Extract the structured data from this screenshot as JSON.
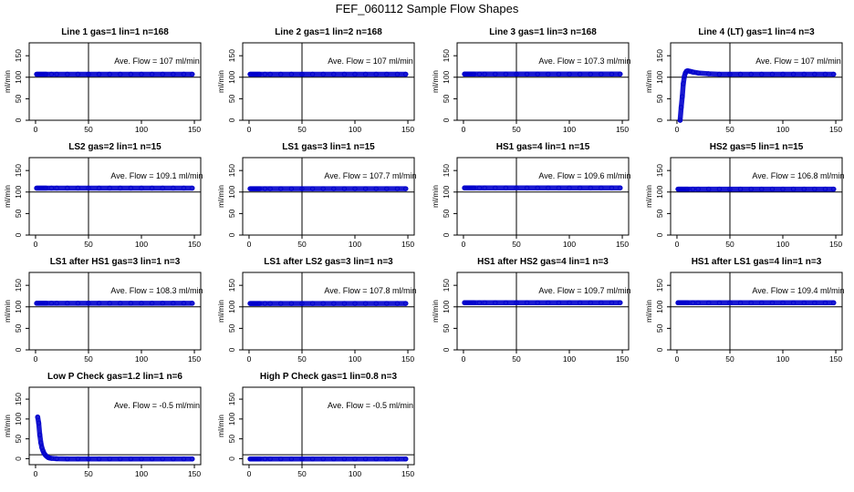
{
  "figure": {
    "title": "FEF_060112  Sample Flow Shapes"
  },
  "colors": {
    "points": "#0000cc",
    "axes": "#000000"
  },
  "chart_data": [
    {
      "type": "scatter",
      "title": "Line 1 gas=1 lin=1 n=168",
      "ylabel": "ml/min",
      "annotation": "Ave. Flow =  107  ml/min",
      "xlim": [
        0,
        150
      ],
      "ylim": [
        0,
        180
      ],
      "xticks": [
        0,
        50,
        100,
        150
      ],
      "yticks": [
        0,
        50,
        100,
        150
      ],
      "x": [
        1,
        2,
        3,
        4,
        5,
        6,
        7,
        8,
        9,
        10,
        15,
        20,
        30,
        40,
        50,
        60,
        70,
        80,
        90,
        100,
        110,
        120,
        130,
        140,
        148
      ],
      "y": [
        107,
        107,
        107,
        107,
        107,
        107,
        107,
        107,
        107,
        107,
        107,
        107,
        107,
        107,
        107,
        107,
        107,
        107,
        107,
        107,
        107,
        107,
        107,
        107,
        107
      ],
      "hline": 100,
      "vline": 50
    },
    {
      "type": "scatter",
      "title": "Line 2 gas=1 lin=2 n=168",
      "ylabel": "ml/min",
      "annotation": "Ave. Flow =  107  ml/min",
      "xlim": [
        0,
        150
      ],
      "ylim": [
        0,
        180
      ],
      "xticks": [
        0,
        50,
        100,
        150
      ],
      "yticks": [
        0,
        50,
        100,
        150
      ],
      "x": [
        1,
        2,
        3,
        4,
        5,
        6,
        7,
        8,
        9,
        10,
        15,
        20,
        30,
        40,
        50,
        60,
        70,
        80,
        90,
        100,
        110,
        120,
        130,
        140,
        148
      ],
      "y": [
        107,
        107,
        107,
        107,
        107,
        107,
        107,
        107,
        107,
        107,
        107,
        107,
        107,
        107,
        107,
        107,
        107,
        107,
        107,
        107,
        107,
        107,
        107,
        107,
        107
      ],
      "hline": 100,
      "vline": 50
    },
    {
      "type": "scatter",
      "title": "Line 3 gas=1 lin=3 n=168",
      "ylabel": "ml/min",
      "annotation": "Ave. Flow =  107.3  ml/min",
      "xlim": [
        0,
        150
      ],
      "ylim": [
        0,
        180
      ],
      "xticks": [
        0,
        50,
        100,
        150
      ],
      "yticks": [
        0,
        50,
        100,
        150
      ],
      "x": [
        1,
        2,
        3,
        4,
        5,
        6,
        7,
        8,
        9,
        10,
        15,
        20,
        30,
        40,
        50,
        60,
        70,
        80,
        90,
        100,
        110,
        120,
        130,
        140,
        148
      ],
      "y": [
        107.3,
        107.3,
        107.3,
        107.3,
        107.3,
        107.3,
        107.3,
        107.3,
        107.3,
        107.3,
        107.3,
        107.3,
        107.3,
        107.3,
        107.3,
        107.3,
        107.3,
        107.3,
        107.3,
        107.3,
        107.3,
        107.3,
        107.3,
        107.3,
        107.3
      ],
      "hline": 100,
      "vline": 50
    },
    {
      "type": "scatter",
      "title": "Line 4 (LT) gas=1 lin=4 n=3",
      "ylabel": "ml/min",
      "annotation": "Ave. Flow =  107  ml/min",
      "xlim": [
        0,
        150
      ],
      "ylim": [
        0,
        180
      ],
      "xticks": [
        0,
        50,
        100,
        150
      ],
      "yticks": [
        0,
        50,
        100,
        150
      ],
      "x": [
        3,
        4,
        5,
        6,
        7,
        8,
        9,
        10,
        12,
        15,
        20,
        30,
        40,
        50,
        60,
        70,
        80,
        90,
        100,
        110,
        120,
        130,
        140,
        148
      ],
      "y": [
        0,
        30,
        55,
        85,
        102,
        110,
        114,
        115,
        114,
        112,
        110,
        108,
        107,
        107,
        107,
        107,
        107,
        107,
        107,
        107,
        107,
        107,
        107,
        107
      ],
      "hline": 100,
      "vline": 50
    },
    {
      "type": "scatter",
      "title": "LS2 gas=2 lin=1 n=15",
      "ylabel": "ml/min",
      "annotation": "Ave. Flow =  109.1  ml/min",
      "xlim": [
        0,
        150
      ],
      "ylim": [
        0,
        180
      ],
      "xticks": [
        0,
        50,
        100,
        150
      ],
      "yticks": [
        0,
        50,
        100,
        150
      ],
      "x": [
        1,
        2,
        3,
        4,
        5,
        6,
        7,
        8,
        9,
        10,
        15,
        20,
        30,
        40,
        50,
        60,
        70,
        80,
        90,
        100,
        110,
        120,
        130,
        140,
        148
      ],
      "y": [
        109.1,
        109.1,
        109.1,
        109.1,
        109.1,
        109.1,
        109.1,
        109.1,
        109.1,
        109.1,
        109.1,
        109.1,
        109.1,
        109.1,
        109.1,
        109.1,
        109.1,
        109.1,
        109.1,
        109.1,
        109.1,
        109.1,
        109.1,
        109.1,
        109.1
      ],
      "hline": 100,
      "vline": 50
    },
    {
      "type": "scatter",
      "title": "LS1 gas=3 lin=1 n=15",
      "ylabel": "ml/min",
      "annotation": "Ave. Flow =  107.7  ml/min",
      "xlim": [
        0,
        150
      ],
      "ylim": [
        0,
        180
      ],
      "xticks": [
        0,
        50,
        100,
        150
      ],
      "yticks": [
        0,
        50,
        100,
        150
      ],
      "x": [
        1,
        2,
        3,
        4,
        5,
        6,
        7,
        8,
        9,
        10,
        15,
        20,
        30,
        40,
        50,
        60,
        70,
        80,
        90,
        100,
        110,
        120,
        130,
        140,
        148
      ],
      "y": [
        107.7,
        107.7,
        107.7,
        107.7,
        107.7,
        107.7,
        107.7,
        107.7,
        107.7,
        107.7,
        107.7,
        107.7,
        107.7,
        107.7,
        107.7,
        107.7,
        107.7,
        107.7,
        107.7,
        107.7,
        107.7,
        107.7,
        107.7,
        107.7,
        107.7
      ],
      "hline": 100,
      "vline": 50
    },
    {
      "type": "scatter",
      "title": "HS1 gas=4 lin=1 n=15",
      "ylabel": "ml/min",
      "annotation": "Ave. Flow =  109.6  ml/min",
      "xlim": [
        0,
        150
      ],
      "ylim": [
        0,
        180
      ],
      "xticks": [
        0,
        50,
        100,
        150
      ],
      "yticks": [
        0,
        50,
        100,
        150
      ],
      "x": [
        1,
        2,
        3,
        4,
        5,
        6,
        7,
        8,
        9,
        10,
        15,
        20,
        30,
        40,
        50,
        60,
        70,
        80,
        90,
        100,
        110,
        120,
        130,
        140,
        148
      ],
      "y": [
        109.6,
        109.6,
        109.6,
        109.6,
        109.6,
        109.6,
        109.6,
        109.6,
        109.6,
        109.6,
        109.6,
        109.6,
        109.6,
        109.6,
        109.6,
        109.6,
        109.6,
        109.6,
        109.6,
        109.6,
        109.6,
        109.6,
        109.6,
        109.6,
        109.6
      ],
      "hline": 100,
      "vline": 50
    },
    {
      "type": "scatter",
      "title": "HS2 gas=5 lin=1 n=15",
      "ylabel": "ml/min",
      "annotation": "Ave. Flow =  106.8  ml/min",
      "xlim": [
        0,
        150
      ],
      "ylim": [
        0,
        180
      ],
      "xticks": [
        0,
        50,
        100,
        150
      ],
      "yticks": [
        0,
        50,
        100,
        150
      ],
      "x": [
        1,
        2,
        3,
        4,
        5,
        6,
        7,
        8,
        9,
        10,
        15,
        20,
        30,
        40,
        50,
        60,
        70,
        80,
        90,
        100,
        110,
        120,
        130,
        140,
        148
      ],
      "y": [
        106.8,
        106.8,
        106.8,
        106.8,
        106.8,
        106.8,
        106.8,
        106.8,
        106.8,
        106.8,
        106.8,
        106.8,
        106.8,
        106.8,
        106.8,
        106.8,
        106.8,
        106.8,
        106.8,
        106.8,
        106.8,
        106.8,
        106.8,
        106.8,
        106.8
      ],
      "hline": 100,
      "vline": 50
    },
    {
      "type": "scatter",
      "title": "LS1 after HS1 gas=3 lin=1 n=3",
      "ylabel": "ml/min",
      "annotation": "Ave. Flow =  108.3  ml/min",
      "xlim": [
        0,
        150
      ],
      "ylim": [
        0,
        180
      ],
      "xticks": [
        0,
        50,
        100,
        150
      ],
      "yticks": [
        0,
        50,
        100,
        150
      ],
      "x": [
        1,
        2,
        3,
        4,
        5,
        6,
        7,
        8,
        9,
        10,
        15,
        20,
        30,
        40,
        50,
        60,
        70,
        80,
        90,
        100,
        110,
        120,
        130,
        140,
        148
      ],
      "y": [
        108.3,
        108.3,
        108.3,
        108.3,
        108.3,
        108.3,
        108.3,
        108.3,
        108.3,
        108.3,
        108.3,
        108.3,
        108.3,
        108.3,
        108.3,
        108.3,
        108.3,
        108.3,
        108.3,
        108.3,
        108.3,
        108.3,
        108.3,
        108.3,
        108.3
      ],
      "hline": 100,
      "vline": 50
    },
    {
      "type": "scatter",
      "title": "LS1 after LS2 gas=3 lin=1 n=3",
      "ylabel": "ml/min",
      "annotation": "Ave. Flow =  107.8  ml/min",
      "xlim": [
        0,
        150
      ],
      "ylim": [
        0,
        180
      ],
      "xticks": [
        0,
        50,
        100,
        150
      ],
      "yticks": [
        0,
        50,
        100,
        150
      ],
      "x": [
        1,
        2,
        3,
        4,
        5,
        6,
        7,
        8,
        9,
        10,
        15,
        20,
        30,
        40,
        50,
        60,
        70,
        80,
        90,
        100,
        110,
        120,
        130,
        140,
        148
      ],
      "y": [
        107.8,
        107.8,
        107.8,
        107.8,
        107.8,
        107.8,
        107.8,
        107.8,
        107.8,
        107.8,
        107.8,
        107.8,
        107.8,
        107.8,
        107.8,
        107.8,
        107.8,
        107.8,
        107.8,
        107.8,
        107.8,
        107.8,
        107.8,
        107.8,
        107.8
      ],
      "hline": 100,
      "vline": 50
    },
    {
      "type": "scatter",
      "title": "HS1 after HS2 gas=4 lin=1 n=3",
      "ylabel": "ml/min",
      "annotation": "Ave. Flow =  109.7  ml/min",
      "xlim": [
        0,
        150
      ],
      "ylim": [
        0,
        180
      ],
      "xticks": [
        0,
        50,
        100,
        150
      ],
      "yticks": [
        0,
        50,
        100,
        150
      ],
      "x": [
        1,
        2,
        3,
        4,
        5,
        6,
        7,
        8,
        9,
        10,
        15,
        20,
        30,
        40,
        50,
        60,
        70,
        80,
        90,
        100,
        110,
        120,
        130,
        140,
        148
      ],
      "y": [
        109.7,
        109.7,
        109.7,
        109.7,
        109.7,
        109.7,
        109.7,
        109.7,
        109.7,
        109.7,
        109.7,
        109.7,
        109.7,
        109.7,
        109.7,
        109.7,
        109.7,
        109.7,
        109.7,
        109.7,
        109.7,
        109.7,
        109.7,
        109.7,
        109.7
      ],
      "hline": 100,
      "vline": 50
    },
    {
      "type": "scatter",
      "title": "HS1 after LS1 gas=4 lin=1 n=3",
      "ylabel": "ml/min",
      "annotation": "Ave. Flow =  109.4  ml/min",
      "xlim": [
        0,
        150
      ],
      "ylim": [
        0,
        180
      ],
      "xticks": [
        0,
        50,
        100,
        150
      ],
      "yticks": [
        0,
        50,
        100,
        150
      ],
      "x": [
        1,
        2,
        3,
        4,
        5,
        6,
        7,
        8,
        9,
        10,
        15,
        20,
        30,
        40,
        50,
        60,
        70,
        80,
        90,
        100,
        110,
        120,
        130,
        140,
        148
      ],
      "y": [
        109.4,
        109.4,
        109.4,
        109.4,
        109.4,
        109.4,
        109.4,
        109.4,
        109.4,
        109.4,
        109.4,
        109.4,
        109.4,
        109.4,
        109.4,
        109.4,
        109.4,
        109.4,
        109.4,
        109.4,
        109.4,
        109.4,
        109.4,
        109.4,
        109.4
      ],
      "hline": 100,
      "vline": 50
    },
    {
      "type": "scatter",
      "title": "Low P Check gas=1.2 lin=1 n=6",
      "ylabel": "ml/min",
      "annotation": "Ave. Flow =  -0.5  ml/min",
      "xlim": [
        0,
        150
      ],
      "ylim": [
        -15,
        180
      ],
      "xticks": [
        0,
        50,
        100,
        150
      ],
      "yticks": [
        0,
        50,
        100,
        150
      ],
      "x": [
        2,
        3,
        4,
        5,
        6,
        7,
        8,
        9,
        10,
        11,
        12,
        13,
        15,
        20,
        30,
        40,
        50,
        60,
        70,
        80,
        90,
        100,
        110,
        120,
        130,
        140,
        148
      ],
      "y": [
        105,
        90,
        60,
        40,
        28,
        20,
        14,
        10,
        7,
        5,
        3,
        2,
        1,
        0,
        -0.5,
        -0.5,
        -0.5,
        -0.5,
        -0.5,
        -0.5,
        -0.5,
        -0.5,
        -0.5,
        -0.5,
        -0.5,
        -0.5,
        -0.5
      ],
      "hline": 10,
      "vline": 50
    },
    {
      "type": "scatter",
      "title": "High P Check gas=1 lin=0.8 n=3",
      "ylabel": "ml/min",
      "annotation": "Ave. Flow =  -0.5  ml/min",
      "xlim": [
        0,
        150
      ],
      "ylim": [
        -15,
        180
      ],
      "xticks": [
        0,
        50,
        100,
        150
      ],
      "yticks": [
        0,
        50,
        100,
        150
      ],
      "x": [
        1,
        2,
        3,
        4,
        5,
        6,
        7,
        8,
        9,
        10,
        15,
        20,
        30,
        40,
        50,
        60,
        70,
        80,
        90,
        100,
        110,
        120,
        130,
        140,
        148
      ],
      "y": [
        -0.5,
        -0.5,
        -0.5,
        -0.5,
        -0.5,
        -0.5,
        -0.5,
        -0.5,
        -0.5,
        -0.5,
        -0.5,
        -0.5,
        -0.5,
        -0.5,
        -0.5,
        -0.5,
        -0.5,
        -0.5,
        -0.5,
        -0.5,
        -0.5,
        -0.5,
        -0.5,
        -0.5,
        -0.5
      ],
      "hline": 10,
      "vline": 50
    }
  ]
}
